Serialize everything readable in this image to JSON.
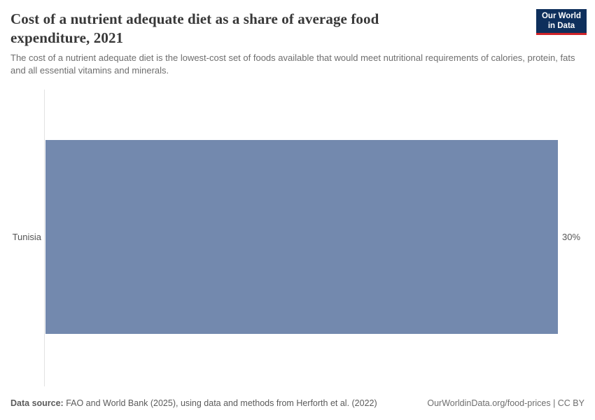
{
  "header": {
    "title": "Cost of a nutrient adequate diet as a share of average food expenditure, 2021",
    "subtitle": "The cost of a nutrient adequate diet is the lowest-cost set of foods available that would meet nutritional requirements of calories, protein, fats and all essential vitamins and minerals.",
    "logo": {
      "line1": "Our World",
      "line2": "in Data"
    }
  },
  "chart_data": {
    "type": "bar",
    "orientation": "horizontal",
    "title": "Cost of a nutrient adequate diet as a share of average food expenditure, 2021",
    "categories": [
      "Tunisia"
    ],
    "values": [
      30
    ],
    "value_labels": [
      "30%"
    ],
    "unit": "%",
    "xlim": [
      0,
      30
    ],
    "grid": false,
    "legend_position": "none",
    "bar_color": "#7389ae"
  },
  "footer": {
    "datasource_label": "Data source:",
    "datasource_text": " FAO and World Bank (2025), using data and methods from Herforth et al. (2022)",
    "license_text": "OurWorldinData.org/food-prices | CC BY"
  },
  "colors": {
    "bar": "#7389ae",
    "axis_line": "#e2e2e2",
    "logo_background": "#0e2f5c",
    "logo_stripe": "#cf2429",
    "title_text": "#383838",
    "subtitle_text": "#6e6e6e"
  }
}
